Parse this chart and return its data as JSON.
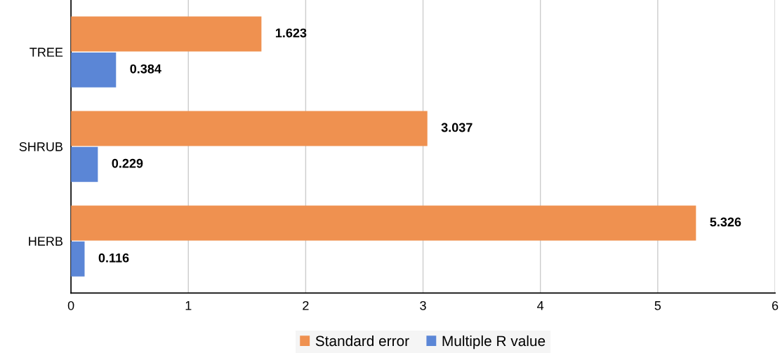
{
  "chart_data": {
    "type": "bar",
    "orientation": "horizontal",
    "categories": [
      "TREE",
      "SHRUB",
      "HERB"
    ],
    "series": [
      {
        "name": "Standard error",
        "color": "#ef9150",
        "values": [
          1.623,
          3.037,
          5.326
        ]
      },
      {
        "name": "Multiple R value",
        "color": "#5b86d6",
        "values": [
          0.384,
          0.229,
          0.116
        ]
      }
    ],
    "xlim": [
      0,
      6
    ],
    "xticks": [
      0,
      1,
      2,
      3,
      4,
      5,
      6
    ],
    "grid": "x",
    "legend": "bottom",
    "data_labels": true
  }
}
